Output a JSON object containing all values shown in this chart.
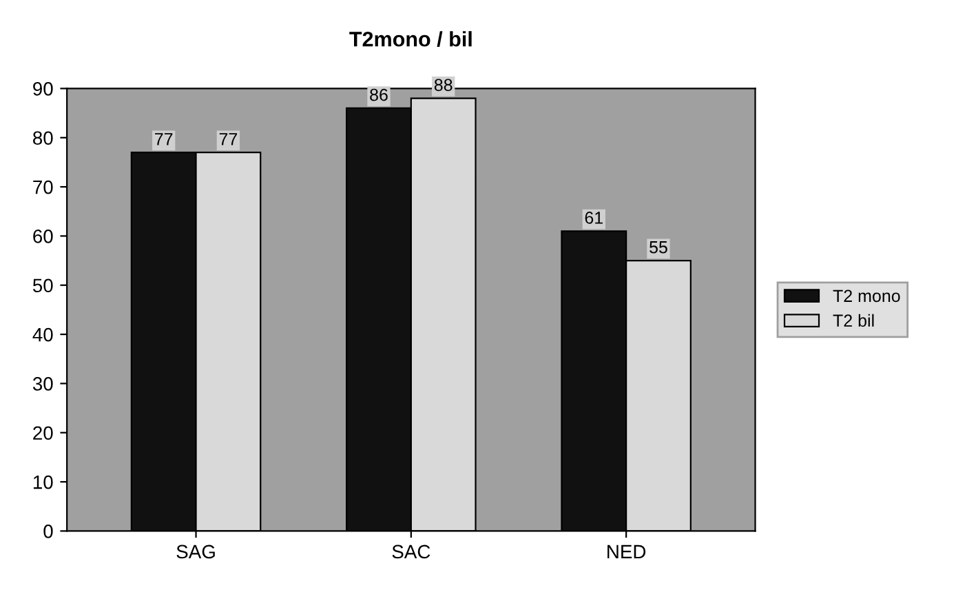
{
  "chart_data": {
    "type": "bar",
    "title": "T2mono / bil",
    "categories": [
      "SAG",
      "SAC",
      "NED"
    ],
    "series": [
      {
        "name": "T2 mono",
        "color": "#111111",
        "values": [
          77,
          86,
          61
        ]
      },
      {
        "name": "T2 bil",
        "color": "#d9d9d9",
        "values": [
          77,
          88,
          55
        ]
      }
    ],
    "ylim": [
      0,
      90
    ],
    "yticks": [
      0,
      10,
      20,
      30,
      40,
      50,
      60,
      70,
      80,
      90
    ],
    "data_labels": true,
    "legend": "right",
    "grid": false
  }
}
